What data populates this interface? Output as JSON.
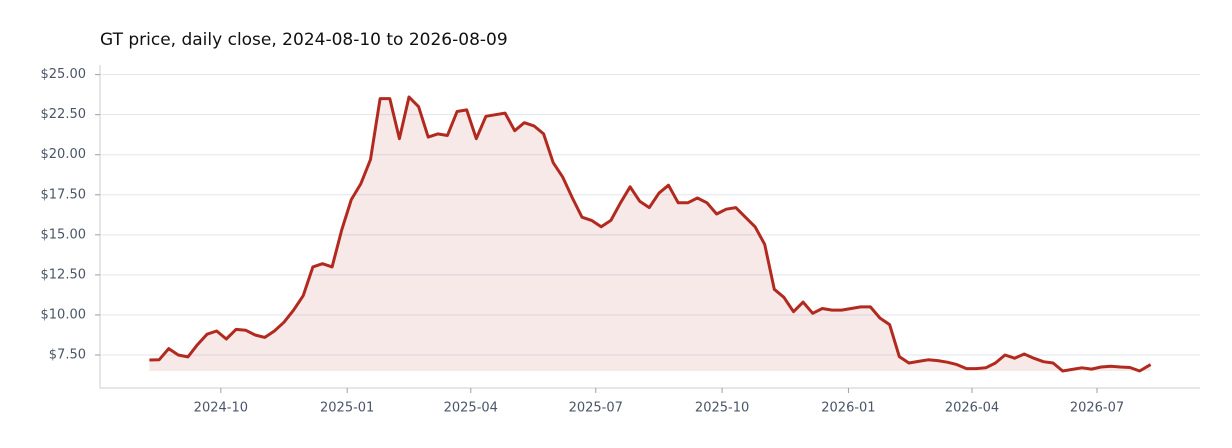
{
  "chart_data": {
    "type": "area-line",
    "title": "GT price, daily close, 2024-08-10 to 2026-08-09",
    "color": "#b22a1f",
    "grid": true,
    "x": [
      "2024-08-10",
      "2024-08-17",
      "2024-08-24",
      "2024-08-31",
      "2024-09-07",
      "2024-09-14",
      "2024-09-21",
      "2024-09-28",
      "2024-10-05",
      "2024-10-12",
      "2024-10-19",
      "2024-10-26",
      "2024-11-02",
      "2024-11-09",
      "2024-11-16",
      "2024-11-23",
      "2024-11-30",
      "2024-12-07",
      "2024-12-14",
      "2024-12-21",
      "2024-12-28",
      "2025-01-04",
      "2025-01-11",
      "2025-01-18",
      "2025-01-25",
      "2025-02-01",
      "2025-02-08",
      "2025-02-15",
      "2025-02-22",
      "2025-03-01",
      "2025-03-08",
      "2025-03-15",
      "2025-03-22",
      "2025-03-29",
      "2025-04-05",
      "2025-04-12",
      "2025-04-19",
      "2025-04-26",
      "2025-05-03",
      "2025-05-10",
      "2025-05-17",
      "2025-05-24",
      "2025-05-31",
      "2025-06-07",
      "2025-06-14",
      "2025-06-21",
      "2025-06-28",
      "2025-07-05",
      "2025-07-12",
      "2025-07-19",
      "2025-07-26",
      "2025-08-02",
      "2025-08-09",
      "2025-08-16",
      "2025-08-23",
      "2025-08-30",
      "2025-09-06",
      "2025-09-13",
      "2025-09-20",
      "2025-09-27",
      "2025-10-04",
      "2025-10-11",
      "2025-10-18",
      "2025-10-25",
      "2025-11-01",
      "2025-11-08",
      "2025-11-15",
      "2025-11-22",
      "2025-11-29",
      "2025-12-06",
      "2025-12-13",
      "2025-12-20",
      "2025-12-27",
      "2026-01-03",
      "2026-01-10",
      "2026-01-17",
      "2026-01-24",
      "2026-01-31",
      "2026-02-07",
      "2026-02-14",
      "2026-02-21",
      "2026-02-28",
      "2026-03-07",
      "2026-03-14",
      "2026-03-21",
      "2026-03-28",
      "2026-04-04",
      "2026-04-11",
      "2026-04-18",
      "2026-04-25",
      "2026-05-02",
      "2026-05-09",
      "2026-05-16",
      "2026-05-23",
      "2026-05-30",
      "2026-06-06",
      "2026-06-13",
      "2026-06-20",
      "2026-06-27",
      "2026-07-04",
      "2026-07-11",
      "2026-07-18",
      "2026-07-25",
      "2026-08-01",
      "2026-08-09"
    ],
    "values": [
      7.19,
      7.2,
      7.9,
      7.5,
      7.38,
      8.15,
      8.8,
      9.0,
      8.5,
      9.1,
      9.05,
      8.75,
      8.6,
      9.0,
      9.55,
      10.3,
      11.2,
      13.0,
      13.2,
      13.0,
      15.3,
      17.2,
      18.2,
      19.7,
      23.5,
      23.5,
      21.0,
      23.6,
      23.0,
      21.1,
      21.3,
      21.2,
      22.7,
      22.8,
      21.0,
      22.4,
      22.5,
      22.6,
      21.5,
      22.0,
      21.8,
      21.3,
      19.5,
      18.6,
      17.3,
      16.1,
      15.9,
      15.5,
      15.9,
      17.0,
      18.0,
      17.1,
      16.7,
      17.6,
      18.1,
      17.0,
      17.0,
      17.3,
      17.0,
      16.3,
      16.6,
      16.7,
      16.1,
      15.5,
      14.4,
      11.6,
      11.1,
      10.2,
      10.8,
      10.1,
      10.4,
      10.3,
      10.3,
      10.4,
      10.5,
      10.5,
      9.8,
      9.4,
      7.4,
      7.0,
      7.1,
      7.2,
      7.15,
      7.05,
      6.9,
      6.65,
      6.65,
      6.7,
      7.0,
      7.5,
      7.3,
      7.56,
      7.3,
      7.08,
      7.0,
      6.5,
      6.6,
      6.7,
      6.62,
      6.75,
      6.8,
      6.75,
      6.72,
      6.5,
      6.9
    ],
    "xlim": [
      "2024-07-05",
      "2026-09-14"
    ],
    "xticks": [
      "2024-10",
      "2025-01",
      "2025-04",
      "2025-07",
      "2025-10",
      "2026-01",
      "2026-04",
      "2026-07"
    ],
    "ylim": [
      5.44,
      25.6
    ],
    "yticks": [
      {
        "value": 7.5,
        "label": "$7.50"
      },
      {
        "value": 10,
        "label": "$10.00"
      },
      {
        "value": 12.5,
        "label": "$12.50"
      },
      {
        "value": 15,
        "label": "$15.00"
      },
      {
        "value": 17.5,
        "label": "$17.50"
      },
      {
        "value": 20,
        "label": "$20.00"
      },
      {
        "value": 22.5,
        "label": "$22.50"
      },
      {
        "value": 25,
        "label": "$25.00"
      }
    ]
  }
}
